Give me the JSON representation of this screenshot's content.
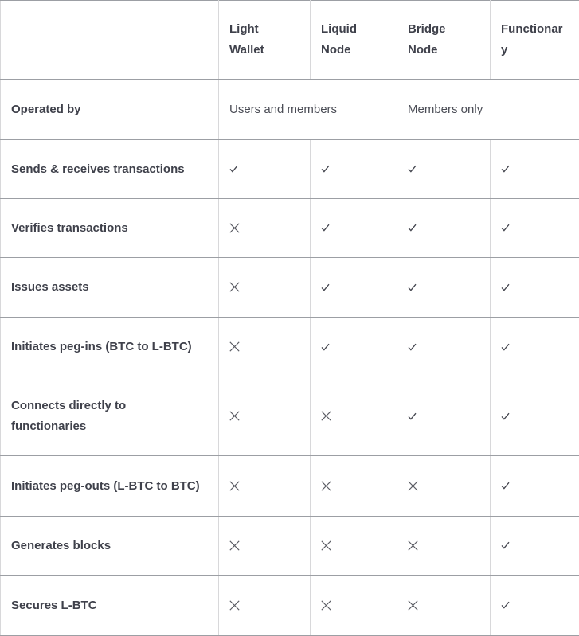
{
  "table": {
    "columns": [
      {
        "label": ""
      },
      {
        "label": "Light Wallet"
      },
      {
        "label": "Liquid Node"
      },
      {
        "label": "Bridge Node"
      },
      {
        "label": "Functionary"
      }
    ],
    "operated_by": {
      "label": "Operated by",
      "groups": [
        {
          "text": "Users and members",
          "span": 2
        },
        {
          "text": "Members only",
          "span": 2
        }
      ]
    },
    "rows": [
      {
        "label": "Sends & receives transactions",
        "values": [
          "check",
          "check",
          "check",
          "check"
        ]
      },
      {
        "label": "Verifies transactions",
        "values": [
          "cross",
          "check",
          "check",
          "check"
        ]
      },
      {
        "label": "Issues assets",
        "values": [
          "cross",
          "check",
          "check",
          "check"
        ]
      },
      {
        "label": "Initiates peg-ins (BTC to L-BTC)",
        "values": [
          "cross",
          "check",
          "check",
          "check"
        ]
      },
      {
        "label": "Connects directly to\nfunctionaries",
        "values": [
          "cross",
          "cross",
          "check",
          "check"
        ]
      },
      {
        "label": "Initiates peg-outs (L-BTC to BTC)",
        "values": [
          "cross",
          "cross",
          "cross",
          "check"
        ]
      },
      {
        "label": "Generates blocks",
        "values": [
          "cross",
          "cross",
          "cross",
          "check"
        ]
      },
      {
        "label": "Secures L-BTC",
        "values": [
          "cross",
          "cross",
          "cross",
          "check"
        ]
      }
    ],
    "icons": {
      "check": "check-icon",
      "cross": "cross-icon"
    },
    "colors": {
      "label_text": "#3F414B",
      "body_text": "#4A4C55",
      "check_mark": "#43454E",
      "cross_mark": "#5B5D64",
      "horizontal_border": "#9C9FA4",
      "vertical_border": "#D8D8DA",
      "background": "#FFFFFF"
    }
  }
}
